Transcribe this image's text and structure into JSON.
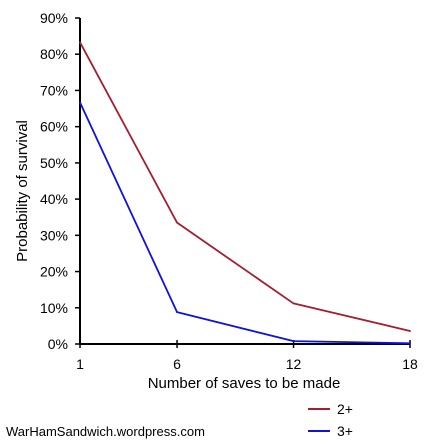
{
  "chart_data": {
    "type": "line",
    "title": "",
    "xlabel": "Number of saves to be made",
    "ylabel": "Probability of survival",
    "x": [
      1,
      6,
      12,
      18
    ],
    "x_ticks": [
      "1",
      "6",
      "12",
      "18"
    ],
    "xlim": [
      1,
      18
    ],
    "ylim": [
      0,
      90
    ],
    "y_ticks": [
      0,
      10,
      20,
      30,
      40,
      50,
      60,
      70,
      80,
      90
    ],
    "y_tick_labels": [
      "0%",
      "10%",
      "20%",
      "30%",
      "40%",
      "50%",
      "60%",
      "70%",
      "80%",
      "90%"
    ],
    "grid": false,
    "legend_position": "bottom-right",
    "series": [
      {
        "name": "2+",
        "color": "#a31e2e",
        "values": [
          83.3,
          33.5,
          11.2,
          3.6
        ]
      },
      {
        "name": "3+",
        "color": "#1010e0",
        "values": [
          66.7,
          8.8,
          0.8,
          0.2
        ]
      }
    ]
  },
  "credit": "WarHamSandwich.wordpress.com"
}
